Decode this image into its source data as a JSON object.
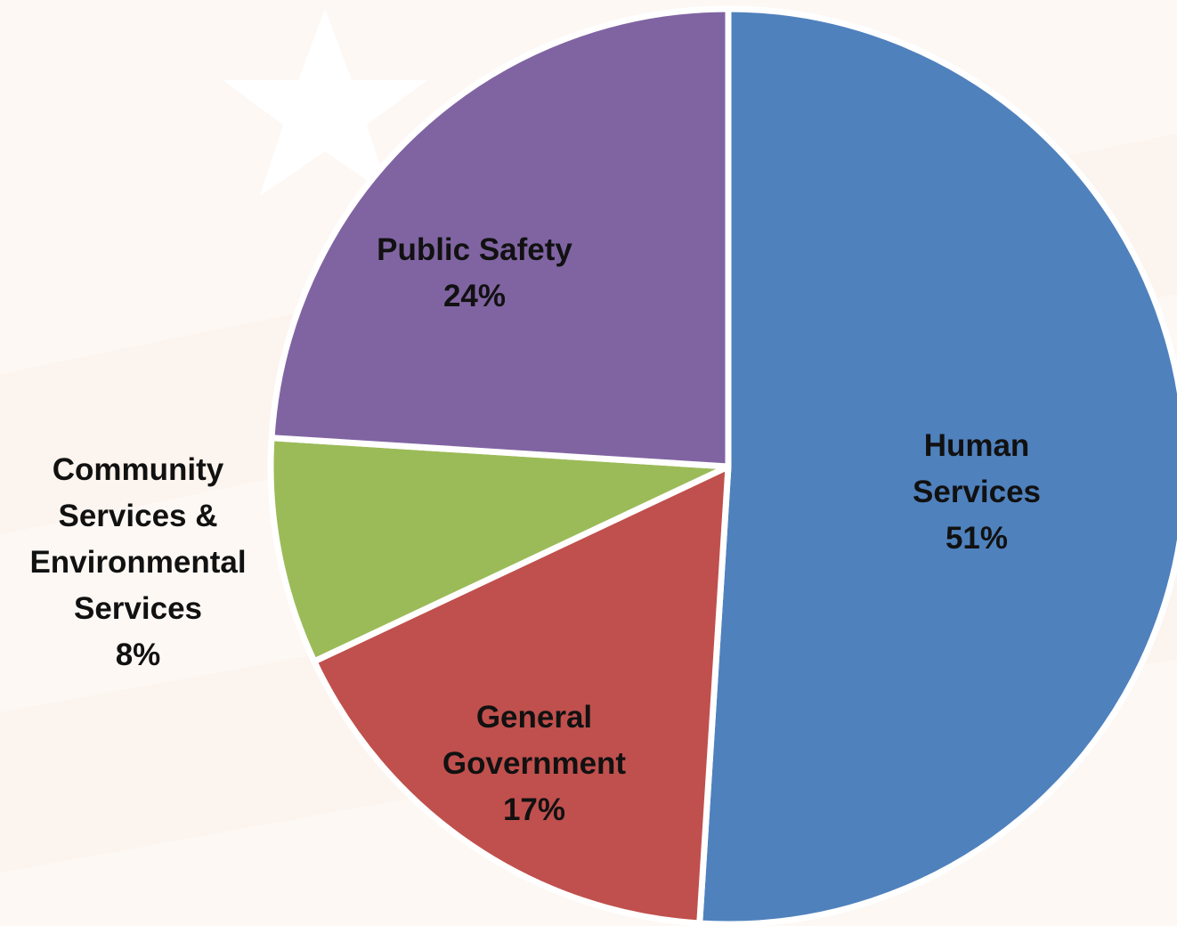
{
  "chart_data": {
    "type": "pie",
    "categories": [
      "Human Services",
      "General Government",
      "Community Services & Environmental Services",
      "Public Safety"
    ],
    "values": [
      51,
      17,
      8,
      24
    ],
    "value_labels": [
      "51%",
      "17%",
      "8%",
      "24%"
    ],
    "colors": [
      "#4f81bd",
      "#c0504d",
      "#9bbb59",
      "#8064a2"
    ]
  }
}
